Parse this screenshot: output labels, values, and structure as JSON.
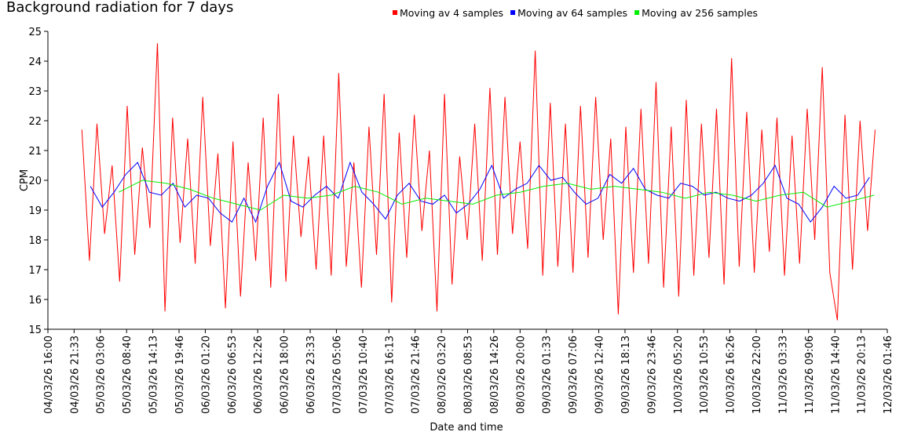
{
  "chart_data": {
    "type": "line",
    "title": "Background radiation for 7 days",
    "x_label": "Date and time",
    "y_label": "CPM",
    "xlim": [
      0,
      177.77
    ],
    "ylim": [
      15,
      25
    ],
    "yticks": [
      15,
      16,
      17,
      18,
      19,
      20,
      21,
      22,
      23,
      24,
      25
    ],
    "xticks": [
      {
        "value": 0,
        "label": "04/03/26 16:00"
      },
      {
        "value": 5.55,
        "label": "04/03/26 21:33"
      },
      {
        "value": 11.1,
        "label": "05/03/26 03:06"
      },
      {
        "value": 16.67,
        "label": "05/03/26 08:40"
      },
      {
        "value": 22.22,
        "label": "05/03/26 14:13"
      },
      {
        "value": 27.77,
        "label": "05/03/26 19:46"
      },
      {
        "value": 33.33,
        "label": "06/03/26 01:20"
      },
      {
        "value": 38.88,
        "label": "06/03/26 06:53"
      },
      {
        "value": 44.43,
        "label": "06/03/26 12:26"
      },
      {
        "value": 50,
        "label": "06/03/26 18:00"
      },
      {
        "value": 55.55,
        "label": "06/03/26 23:33"
      },
      {
        "value": 61.1,
        "label": "07/03/26 05:06"
      },
      {
        "value": 66.67,
        "label": "07/03/26 10:40"
      },
      {
        "value": 72.22,
        "label": "07/03/26 16:13"
      },
      {
        "value": 77.77,
        "label": "07/03/26 21:46"
      },
      {
        "value": 83.33,
        "label": "08/03/26 03:20"
      },
      {
        "value": 88.88,
        "label": "08/03/26 08:53"
      },
      {
        "value": 94.43,
        "label": "08/03/26 14:26"
      },
      {
        "value": 100,
        "label": "08/03/26 20:00"
      },
      {
        "value": 105.55,
        "label": "09/03/26 01:33"
      },
      {
        "value": 111.1,
        "label": "09/03/26 07:06"
      },
      {
        "value": 116.67,
        "label": "09/03/26 12:40"
      },
      {
        "value": 122.22,
        "label": "09/03/26 18:13"
      },
      {
        "value": 127.77,
        "label": "09/03/26 23:46"
      },
      {
        "value": 133.33,
        "label": "10/03/26 05:20"
      },
      {
        "value": 138.88,
        "label": "10/03/26 10:53"
      },
      {
        "value": 144.43,
        "label": "10/03/26 16:26"
      },
      {
        "value": 150,
        "label": "10/03/26 22:00"
      },
      {
        "value": 155.55,
        "label": "11/03/26 03:33"
      },
      {
        "value": 161.1,
        "label": "11/03/26 09:06"
      },
      {
        "value": 166.67,
        "label": "11/03/26 14:40"
      },
      {
        "value": 172.22,
        "label": "11/03/26 20:13"
      },
      {
        "value": 177.77,
        "label": "12/03/26 01:46"
      }
    ],
    "series": [
      {
        "name": "Moving av 4 samples",
        "color": "#ff0000",
        "x": [
          7.2,
          8.8,
          10.4,
          12,
          13.6,
          15.2,
          16.8,
          18.4,
          20,
          21.6,
          23.2,
          24.8,
          26.4,
          28,
          29.6,
          31.2,
          32.8,
          34.4,
          36,
          37.6,
          39.2,
          40.8,
          42.4,
          44,
          45.6,
          47.2,
          48.8,
          50.4,
          52,
          53.6,
          55.2,
          56.8,
          58.4,
          60,
          61.6,
          63.2,
          64.8,
          66.4,
          68,
          69.6,
          71.2,
          72.8,
          74.4,
          76,
          77.6,
          79.2,
          80.8,
          82.4,
          84,
          85.6,
          87.2,
          88.8,
          90.4,
          92,
          93.6,
          95.2,
          96.8,
          98.4,
          100,
          101.6,
          103.2,
          104.8,
          106.4,
          108,
          109.6,
          111.2,
          112.8,
          114.4,
          116,
          117.6,
          119.2,
          120.8,
          122.4,
          124,
          125.6,
          127.2,
          128.8,
          130.4,
          132,
          133.6,
          135.2,
          136.8,
          138.4,
          140,
          141.6,
          143.2,
          144.8,
          146.4,
          148,
          149.6,
          151.2,
          152.8,
          154.4,
          156,
          157.6,
          159.2,
          160.8,
          162.4,
          164,
          165.6,
          167.2,
          168.8,
          170.4,
          172,
          173.6,
          175.2
        ],
        "values": [
          21.7,
          17.3,
          21.9,
          18.2,
          20.5,
          16.6,
          22.5,
          17.5,
          21.1,
          18.4,
          24.6,
          15.6,
          22.1,
          17.9,
          21.4,
          17.2,
          22.8,
          17.8,
          20.9,
          15.7,
          21.3,
          16.1,
          20.6,
          17.3,
          22.1,
          16.4,
          22.9,
          16.6,
          21.5,
          18.1,
          20.8,
          17.0,
          21.5,
          16.8,
          23.6,
          17.1,
          20.6,
          16.4,
          21.8,
          17.5,
          22.9,
          15.9,
          21.6,
          17.4,
          22.2,
          18.3,
          21.0,
          15.6,
          22.9,
          16.5,
          20.8,
          18.0,
          21.9,
          17.3,
          23.1,
          17.5,
          22.8,
          18.2,
          21.3,
          17.7,
          24.35,
          16.8,
          22.6,
          17.1,
          21.9,
          16.9,
          22.5,
          17.4,
          22.8,
          18.0,
          21.4,
          15.5,
          21.8,
          16.9,
          22.4,
          17.2,
          23.3,
          16.4,
          21.8,
          16.1,
          22.7,
          16.8,
          21.9,
          17.4,
          22.4,
          16.5,
          24.1,
          17.1,
          22.3,
          16.9,
          21.7,
          17.6,
          22.1,
          16.8,
          21.5,
          17.2,
          22.4,
          18.0,
          23.8,
          16.9,
          15.3,
          22.2,
          17.0,
          22.0,
          18.3,
          21.7
        ]
      },
      {
        "name": "Moving av 64 samples",
        "color": "#0000ff",
        "x": [
          9,
          11.5,
          14,
          16.5,
          19,
          21.5,
          24,
          26.5,
          29,
          31.5,
          34,
          36.5,
          39,
          41.5,
          44,
          46.5,
          49,
          51.5,
          54,
          56.5,
          59,
          61.5,
          64,
          66.5,
          69,
          71.5,
          74,
          76.5,
          79,
          81.5,
          84,
          86.5,
          89,
          91.5,
          94,
          96.5,
          99,
          101.5,
          104,
          106.5,
          109,
          111.5,
          114,
          116.5,
          119,
          121.5,
          124,
          126.5,
          129,
          131.5,
          134,
          136.5,
          139,
          141.5,
          144,
          146.5,
          149,
          151.5,
          154,
          156.5,
          159,
          161.5,
          164,
          166.5,
          169,
          171.5,
          174
        ],
        "values": [
          19.8,
          19.1,
          19.6,
          20.2,
          20.6,
          19.6,
          19.5,
          19.9,
          19.1,
          19.5,
          19.4,
          18.9,
          18.6,
          19.4,
          18.6,
          19.8,
          20.6,
          19.3,
          19.1,
          19.5,
          19.8,
          19.4,
          20.6,
          19.6,
          19.2,
          18.7,
          19.5,
          19.9,
          19.3,
          19.2,
          19.5,
          18.9,
          19.2,
          19.7,
          20.5,
          19.4,
          19.7,
          19.9,
          20.5,
          20.0,
          20.1,
          19.6,
          19.2,
          19.4,
          20.2,
          19.9,
          20.4,
          19.7,
          19.5,
          19.4,
          19.9,
          19.8,
          19.5,
          19.6,
          19.4,
          19.3,
          19.5,
          19.9,
          20.5,
          19.4,
          19.2,
          18.6,
          19.1,
          19.8,
          19.4,
          19.5,
          20.1
        ]
      },
      {
        "name": "Moving av 256 samples",
        "color": "#00ee00",
        "x": [
          15,
          20,
          25,
          30,
          35,
          40,
          45,
          50,
          55,
          60,
          65,
          70,
          75,
          80,
          85,
          90,
          95,
          100,
          105,
          110,
          115,
          120,
          125,
          130,
          135,
          140,
          145,
          150,
          155,
          160,
          165,
          170,
          175
        ],
        "values": [
          19.6,
          20.0,
          19.9,
          19.7,
          19.4,
          19.2,
          19.0,
          19.5,
          19.4,
          19.5,
          19.8,
          19.6,
          19.2,
          19.4,
          19.3,
          19.2,
          19.5,
          19.6,
          19.8,
          19.9,
          19.7,
          19.8,
          19.7,
          19.6,
          19.4,
          19.6,
          19.5,
          19.3,
          19.5,
          19.6,
          19.1,
          19.3,
          19.5
        ]
      }
    ]
  }
}
